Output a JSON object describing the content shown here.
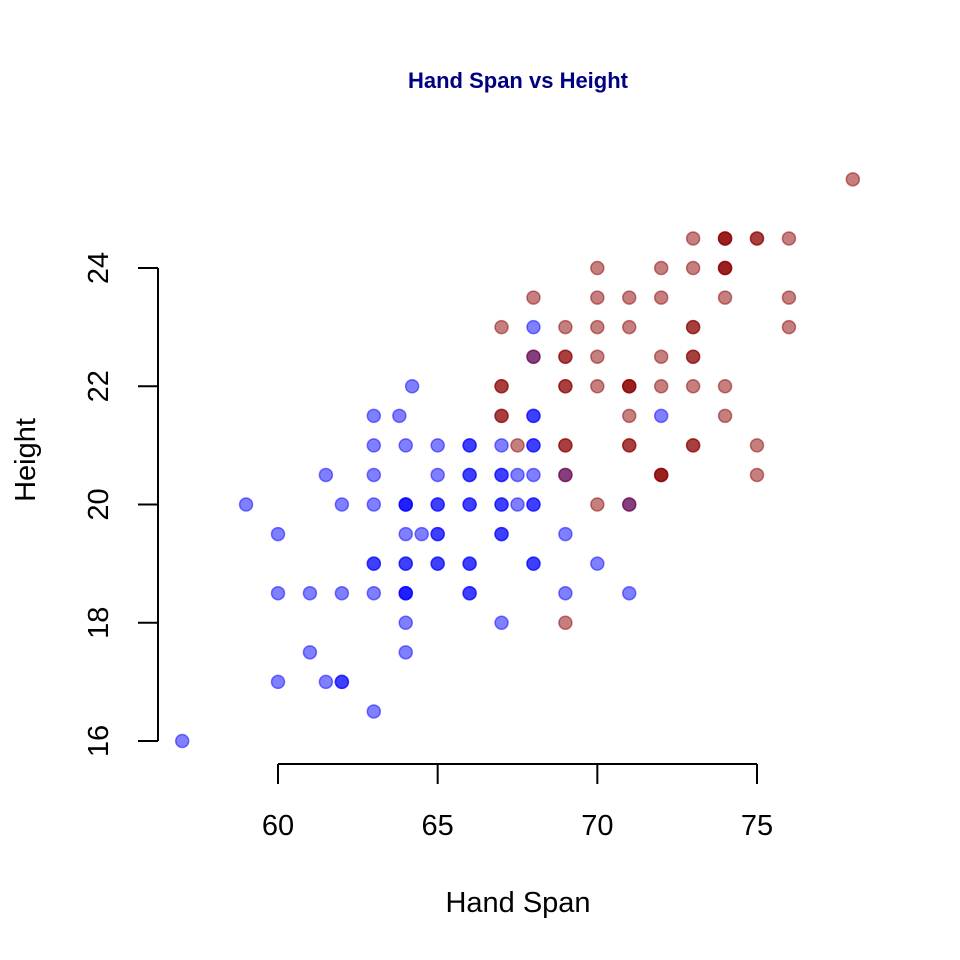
{
  "chart_data": {
    "type": "scatter",
    "title": "Hand Span vs Height",
    "xlabel": "Hand Span",
    "ylabel": "Height",
    "xlim": [
      56,
      79
    ],
    "ylim": [
      16,
      25.5
    ],
    "x_ticks": [
      60,
      65,
      70,
      75
    ],
    "y_ticks": [
      16,
      18,
      20,
      22,
      24
    ],
    "grid": false,
    "legend": null,
    "colors": {
      "title": "#000080",
      "group_a": "#0000ff",
      "group_b": "#8b0000",
      "marker_alpha": 0.5
    },
    "series": [
      {
        "color": "#0000ff",
        "points": [
          [
            57,
            16
          ],
          [
            59,
            20
          ],
          [
            60,
            19.5
          ],
          [
            60,
            18.5
          ],
          [
            60,
            17
          ],
          [
            61,
            18.5
          ],
          [
            61,
            17.5
          ],
          [
            61.5,
            20.5
          ],
          [
            61.5,
            17
          ],
          [
            62,
            20
          ],
          [
            62,
            18.5
          ],
          [
            62,
            17
          ],
          [
            62,
            17
          ],
          [
            63,
            21.5
          ],
          [
            63,
            21
          ],
          [
            63,
            20.5
          ],
          [
            63,
            20
          ],
          [
            63,
            19
          ],
          [
            63,
            19
          ],
          [
            63,
            18.5
          ],
          [
            63,
            16.5
          ],
          [
            63.8,
            21.5
          ],
          [
            64,
            21
          ],
          [
            64,
            20
          ],
          [
            64,
            20
          ],
          [
            64,
            20
          ],
          [
            64,
            19.5
          ],
          [
            64,
            19
          ],
          [
            64,
            19
          ],
          [
            64,
            18.5
          ],
          [
            64,
            18.5
          ],
          [
            64,
            18.5
          ],
          [
            64,
            18
          ],
          [
            64,
            17.5
          ],
          [
            64.2,
            22
          ],
          [
            64.5,
            19.5
          ],
          [
            65,
            21
          ],
          [
            65,
            20.5
          ],
          [
            65,
            20
          ],
          [
            65,
            20
          ],
          [
            65,
            19.5
          ],
          [
            65,
            19.5
          ],
          [
            65,
            19
          ],
          [
            65,
            19
          ],
          [
            66,
            21
          ],
          [
            66,
            21
          ],
          [
            66,
            20.5
          ],
          [
            66,
            20.5
          ],
          [
            66,
            20
          ],
          [
            66,
            20
          ],
          [
            66,
            19
          ],
          [
            66,
            19
          ],
          [
            66,
            18.5
          ],
          [
            66,
            18.5
          ],
          [
            67,
            21
          ],
          [
            67,
            20.5
          ],
          [
            67,
            20.5
          ],
          [
            67,
            20
          ],
          [
            67,
            20
          ],
          [
            67,
            19.5
          ],
          [
            67,
            19.5
          ],
          [
            67,
            18
          ],
          [
            67.5,
            20.5
          ],
          [
            67.5,
            20
          ],
          [
            68,
            23
          ],
          [
            68,
            22.5
          ],
          [
            68,
            21.5
          ],
          [
            68,
            21.5
          ],
          [
            68,
            21
          ],
          [
            68,
            21
          ],
          [
            68,
            20.5
          ],
          [
            68,
            20
          ],
          [
            68,
            20
          ],
          [
            68,
            19
          ],
          [
            68,
            19
          ],
          [
            69,
            20.5
          ],
          [
            69,
            19.5
          ],
          [
            69,
            18.5
          ],
          [
            70,
            19
          ],
          [
            71,
            20
          ],
          [
            71,
            18.5
          ],
          [
            72,
            21.5
          ]
        ]
      },
      {
        "color": "#8b0000",
        "points": [
          [
            67,
            23
          ],
          [
            67,
            22
          ],
          [
            67,
            22
          ],
          [
            67,
            21.5
          ],
          [
            67,
            21.5
          ],
          [
            67.5,
            21
          ],
          [
            68,
            23.5
          ],
          [
            68,
            22.5
          ],
          [
            69,
            23
          ],
          [
            69,
            22.5
          ],
          [
            69,
            22.5
          ],
          [
            69,
            22
          ],
          [
            69,
            22
          ],
          [
            69,
            21
          ],
          [
            69,
            21
          ],
          [
            69,
            20.5
          ],
          [
            69,
            18
          ],
          [
            70,
            24
          ],
          [
            70,
            23.5
          ],
          [
            70,
            23
          ],
          [
            70,
            22.5
          ],
          [
            70,
            22
          ],
          [
            70,
            20
          ],
          [
            71,
            23.5
          ],
          [
            71,
            23
          ],
          [
            71,
            22
          ],
          [
            71,
            22
          ],
          [
            71,
            22
          ],
          [
            71,
            21.5
          ],
          [
            71,
            21
          ],
          [
            71,
            21
          ],
          [
            71,
            20
          ],
          [
            72,
            24
          ],
          [
            72,
            23.5
          ],
          [
            72,
            22.5
          ],
          [
            72,
            22
          ],
          [
            72,
            20.5
          ],
          [
            72,
            20.5
          ],
          [
            72,
            20.5
          ],
          [
            73,
            24.5
          ],
          [
            73,
            24
          ],
          [
            73,
            23
          ],
          [
            73,
            23
          ],
          [
            73,
            22.5
          ],
          [
            73,
            22.5
          ],
          [
            73,
            22
          ],
          [
            73,
            21
          ],
          [
            73,
            21
          ],
          [
            74,
            24.5
          ],
          [
            74,
            24.5
          ],
          [
            74,
            24.5
          ],
          [
            74,
            24
          ],
          [
            74,
            24
          ],
          [
            74,
            24
          ],
          [
            74,
            23.5
          ],
          [
            74,
            22
          ],
          [
            74,
            21.5
          ],
          [
            75,
            24.5
          ],
          [
            75,
            24.5
          ],
          [
            75,
            21
          ],
          [
            75,
            20.5
          ],
          [
            76,
            24.5
          ],
          [
            76,
            23.5
          ],
          [
            76,
            23
          ],
          [
            78,
            25.5
          ]
        ]
      }
    ]
  }
}
